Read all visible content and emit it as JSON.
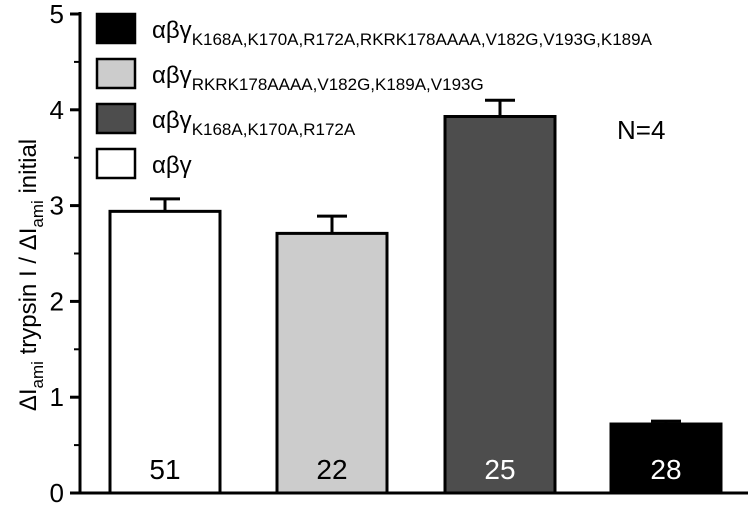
{
  "chart_data": {
    "type": "bar",
    "ylabel": {
      "parts": [
        {
          "text": "ΔI",
          "sub": false
        },
        {
          "text": "ami",
          "sub": true
        },
        {
          "text": " trypsin I / ΔI",
          "sub": false
        },
        {
          "text": "ami",
          "sub": true
        },
        {
          "text": " initial",
          "sub": false
        }
      ]
    },
    "ylim": [
      0,
      5
    ],
    "yticks": [
      "0",
      "1",
      "2",
      "3",
      "4",
      "5"
    ],
    "annotation": "N=4",
    "categories": [
      "αβγ",
      "αβγRKRK178AAAA,V182G,K189A,V193G",
      "αβγK168A,K170A,R172A",
      "αβγK168A,K170A,R172A,RKRK178AAAA,V182G,V193G,K189A"
    ],
    "values": [
      2.94,
      2.71,
      3.93,
      0.72
    ],
    "errors": [
      0.13,
      0.18,
      0.17,
      0.03
    ],
    "counts": [
      "51",
      "22",
      "25",
      "28"
    ],
    "bar_colors": [
      "#ffffff",
      "#cccccc",
      "#4d4d4d",
      "#000000"
    ],
    "count_colors": [
      "#000000",
      "#000000",
      "#ffffff",
      "#ffffff"
    ],
    "legend": [
      {
        "base": "αβγ",
        "sub": "K168A,K170A,R172A,RKRK178AAAA,V182G,V193G,K189A",
        "color": "#000000"
      },
      {
        "base": "αβγ",
        "sub": "RKRK178AAAA,V182G,K189A,V193G",
        "color": "#cccccc"
      },
      {
        "base": "αβγ",
        "sub": "K168A,K170A,R172A",
        "color": "#4d4d4d"
      },
      {
        "base": "αβγ",
        "sub": "",
        "color": "#ffffff"
      }
    ],
    "legend_placement": "top-left",
    "grid": false
  }
}
